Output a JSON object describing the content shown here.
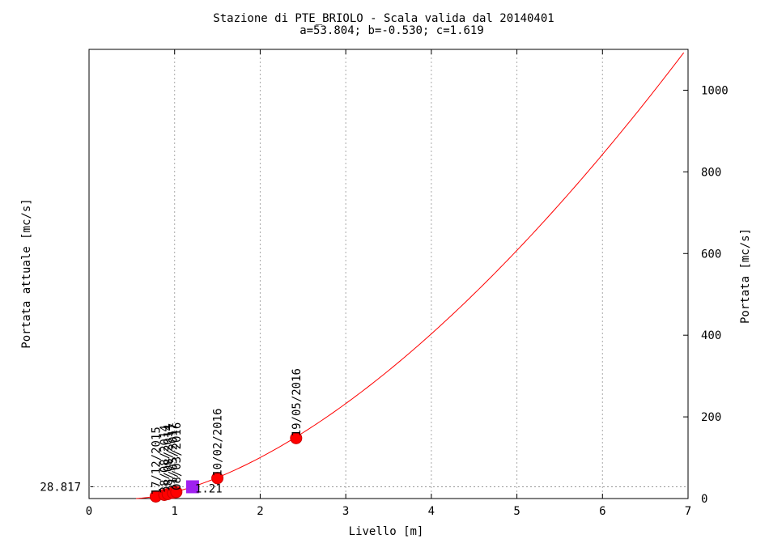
{
  "chart_data": {
    "type": "scatter",
    "title": "Stazione di PTE_BRIOLO - Scala valida dal 20140401",
    "subtitle": "a=53.804; b=-0.530; c=1.619",
    "xlabel": "Livello [m]",
    "ylabel_left": "Portata attuale [mc/s]",
    "ylabel_right": "Portata [mc/s]",
    "xlim": [
      0,
      7
    ],
    "ylim": [
      0,
      1100
    ],
    "x_ticks": [
      "0",
      "1",
      "2",
      "3",
      "4",
      "5",
      "6",
      "7"
    ],
    "y_ticks_right": [
      "0",
      "200",
      "400",
      "600",
      "800",
      "1000"
    ],
    "grid": "x-dotted",
    "curve": {
      "formula": "Q = a*(h+b)^c",
      "a": 53.804,
      "b": -0.53,
      "c": 1.619,
      "x_start": 0.55,
      "x_end": 6.95,
      "color": "#ff0000"
    },
    "measurements": {
      "color": "#ff0000",
      "points": [
        {
          "x": 0.78,
          "y": 5,
          "label": "17/12/2015"
        },
        {
          "x": 0.88,
          "y": 9,
          "label": "28/08/2014"
        },
        {
          "x": 0.92,
          "y": 11,
          "label": "28/08/2014"
        },
        {
          "x": 0.98,
          "y": 14,
          "label": "31/05/2017"
        },
        {
          "x": 1.02,
          "y": 16,
          "label": "08/03/2016"
        },
        {
          "x": 1.5,
          "y": 50,
          "label": "10/02/2016"
        },
        {
          "x": 2.42,
          "y": 148,
          "label": "19/05/2016"
        }
      ]
    },
    "current": {
      "x": 1.21,
      "y": 28.817,
      "level_label": "1.21",
      "flow_label": "28.817",
      "color": "#a020f0"
    }
  }
}
